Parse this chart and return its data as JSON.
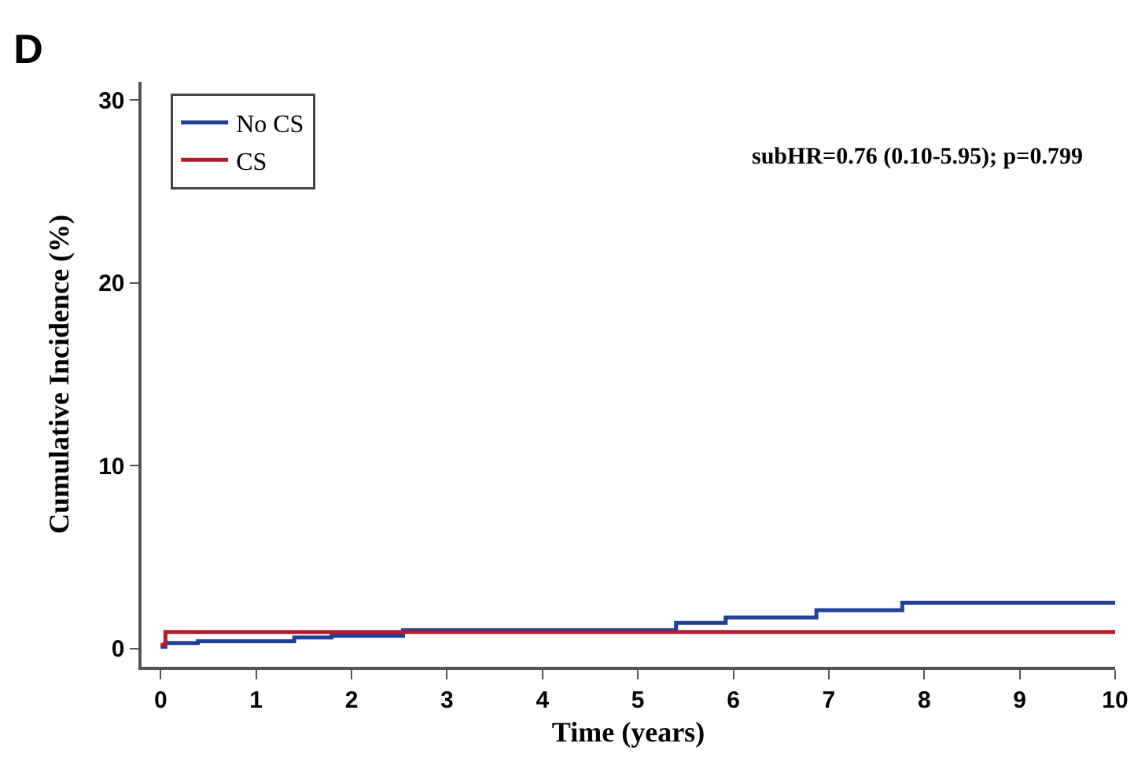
{
  "chart_data": {
    "type": "step",
    "title": "D",
    "xlabel": "Time (years)",
    "ylabel": "Cumulative Incidence (%)",
    "annotations": [
      "subHR=0.76 (0.10-5.95); p=0.799"
    ],
    "series": [
      {
        "name": "No CS",
        "color": "#1f3f99",
        "x": [
          0,
          0.05,
          0.39,
          1.4,
          1.79,
          2.54,
          5.4,
          5.92,
          6.87,
          7.77,
          10
        ],
        "values": [
          0.1,
          0.3,
          0.4,
          0.6,
          0.7,
          1,
          1.4,
          1.7,
          2.1,
          2.5,
          2.5
        ]
      },
      {
        "name": "CS",
        "color": "#b01c2e",
        "x": [
          0,
          0.05,
          10
        ],
        "values": [
          0.2,
          0.9,
          0.9
        ]
      }
    ],
    "xlim": [
      -0.2,
      10
    ],
    "ylim": [
      -1,
      31
    ],
    "xticks": [
      0,
      1,
      2,
      3,
      4,
      5,
      6,
      7,
      8,
      9,
      10
    ],
    "yticks": [
      0,
      10,
      20,
      30
    ],
    "grid": false,
    "legend": "top left",
    "marker": "none",
    "line_style": "solid"
  }
}
